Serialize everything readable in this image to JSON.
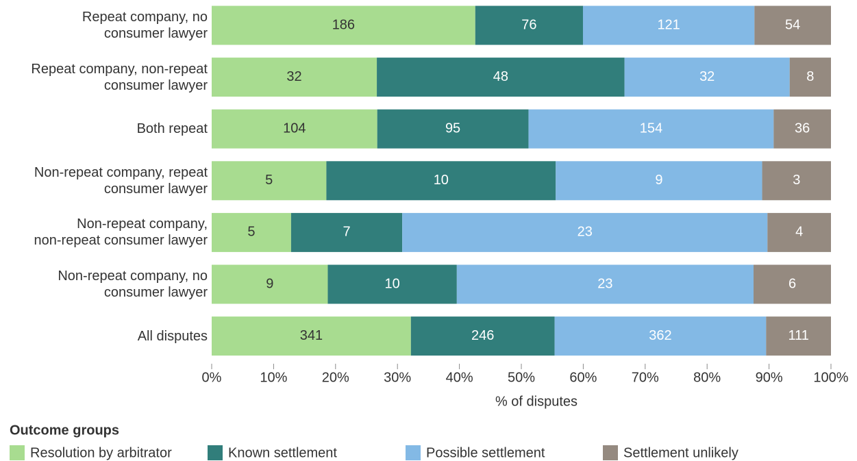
{
  "chart_data": {
    "type": "bar",
    "orientation": "horizontal",
    "stacked": "percent",
    "categories": [
      "Repeat company, no\nconsumer lawyer",
      "Repeat company, non-repeat\nconsumer lawyer",
      "Both repeat",
      "Non-repeat company, repeat\nconsumer lawyer",
      "Non-repeat company,\nnon-repeat consumer lawyer",
      "Non-repeat company, no\nconsumer lawyer",
      "All disputes"
    ],
    "series": [
      {
        "name": "Resolution by arbitrator",
        "color": "#a8dc90",
        "label_color": "#333333",
        "values": [
          186,
          32,
          104,
          5,
          5,
          9,
          341
        ]
      },
      {
        "name": "Known settlement",
        "color": "#317e7b",
        "label_color": "#ffffff",
        "values": [
          76,
          48,
          95,
          10,
          7,
          10,
          246
        ]
      },
      {
        "name": "Possible settlement",
        "color": "#83b9e5",
        "label_color": "#ffffff",
        "values": [
          121,
          32,
          154,
          9,
          23,
          23,
          362
        ]
      },
      {
        "name": "Settlement unlikely",
        "color": "#958a80",
        "label_color": "#ffffff",
        "values": [
          54,
          8,
          36,
          3,
          4,
          6,
          111
        ]
      }
    ],
    "xlim": [
      0,
      100
    ],
    "xticks": [
      {
        "value": 0,
        "label": "0%"
      },
      {
        "value": 10,
        "label": "10%"
      },
      {
        "value": 20,
        "label": "20%"
      },
      {
        "value": 30,
        "label": "30%"
      },
      {
        "value": 40,
        "label": "40%"
      },
      {
        "value": 50,
        "label": "50%"
      },
      {
        "value": 60,
        "label": "60%"
      },
      {
        "value": 70,
        "label": "70%"
      },
      {
        "value": 80,
        "label": "80%"
      },
      {
        "value": 90,
        "label": "90%"
      },
      {
        "value": 100,
        "label": "100%"
      }
    ],
    "xlabel": "% of disputes",
    "legend_title": "Outcome groups",
    "legend_position": "bottom"
  }
}
